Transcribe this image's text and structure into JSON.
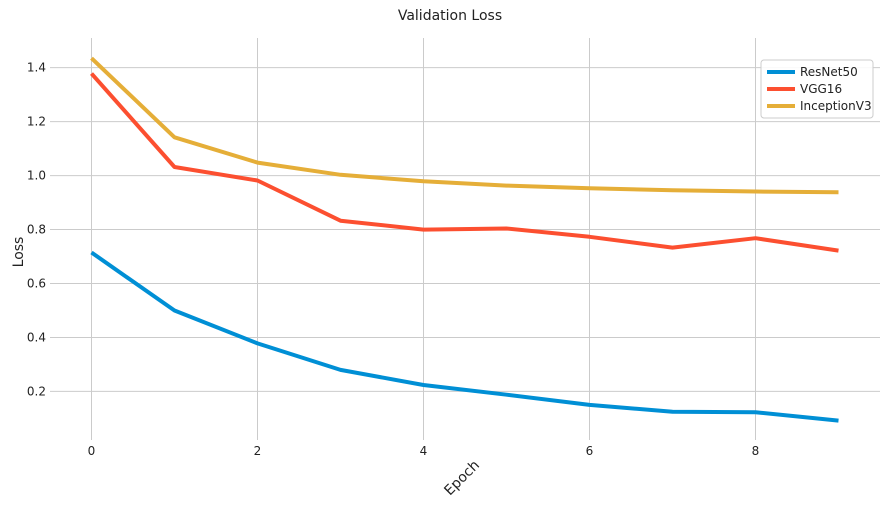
{
  "chart_data": {
    "type": "line",
    "title": "Validation Loss",
    "xlabel": "Epoch",
    "ylabel": "Loss",
    "x": [
      0,
      1,
      2,
      3,
      4,
      5,
      6,
      7,
      8,
      9
    ],
    "x_ticks": [
      0,
      2,
      4,
      6,
      8
    ],
    "y_ticks": [
      0.2,
      0.4,
      0.6,
      0.8,
      1.0,
      1.2,
      1.4
    ],
    "xlim": [
      -0.5,
      9.5
    ],
    "ylim": [
      0.02,
      1.51
    ],
    "grid": true,
    "legend_position": "top-right",
    "series": [
      {
        "name": "ResNet50",
        "color": "#008fd5",
        "values": [
          0.715,
          0.5,
          0.378,
          0.28,
          0.224,
          0.188,
          0.15,
          0.125,
          0.123,
          0.092
        ]
      },
      {
        "name": "VGG16",
        "color": "#fc4f30",
        "values": [
          1.378,
          1.032,
          0.982,
          0.833,
          0.8,
          0.804,
          0.773,
          0.733,
          0.768,
          0.722
        ]
      },
      {
        "name": "InceptionV3",
        "color": "#e5ae38",
        "values": [
          1.435,
          1.142,
          1.048,
          1.003,
          0.979,
          0.963,
          0.953,
          0.946,
          0.941,
          0.938
        ]
      }
    ]
  },
  "colors": {
    "grid": "#cbcbcb",
    "text": "#222222"
  }
}
